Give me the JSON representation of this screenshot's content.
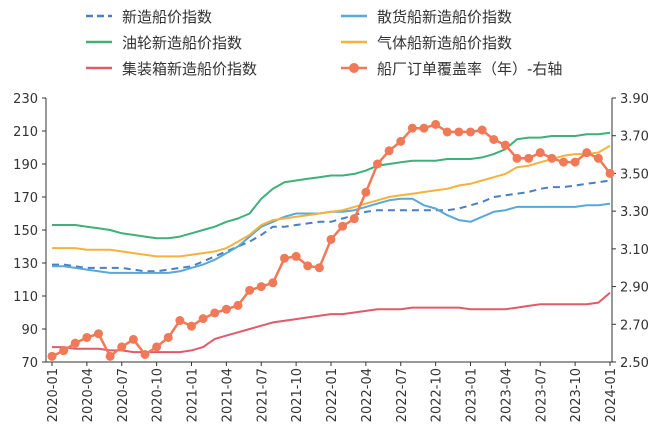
{
  "chart_data": {
    "type": "line",
    "x": [
      "2020-01",
      "2020-02",
      "2020-03",
      "2020-04",
      "2020-05",
      "2020-06",
      "2020-07",
      "2020-08",
      "2020-09",
      "2020-10",
      "2020-11",
      "2020-12",
      "2021-01",
      "2021-02",
      "2021-03",
      "2021-04",
      "2021-05",
      "2021-06",
      "2021-07",
      "2021-08",
      "2021-09",
      "2021-10",
      "2021-11",
      "2021-12",
      "2022-01",
      "2022-02",
      "2022-03",
      "2022-04",
      "2022-05",
      "2022-06",
      "2022-07",
      "2022-08",
      "2022-09",
      "2022-10",
      "2022-11",
      "2022-12",
      "2023-01",
      "2023-02",
      "2023-03",
      "2023-04",
      "2023-05",
      "2023-06",
      "2023-07",
      "2023-08",
      "2023-09",
      "2023-10",
      "2023-11",
      "2023-12",
      "2024-01"
    ],
    "xticks": [
      "2020-01",
      "2020-04",
      "2020-07",
      "2020-10",
      "2021-01",
      "2021-04",
      "2021-07",
      "2021-10",
      "2022-01",
      "2022-04",
      "2022-07",
      "2022-10",
      "2023-01",
      "2023-04",
      "2023-07",
      "2023-10",
      "2024-01"
    ],
    "ylim_left": [
      70,
      230
    ],
    "yticks_left": [
      "70",
      "90",
      "110",
      "130",
      "150",
      "170",
      "190",
      "210",
      "230"
    ],
    "ylim_right": [
      2.5,
      3.9
    ],
    "yticks_right": [
      "2.50",
      "2.70",
      "2.90",
      "3.10",
      "3.30",
      "3.50",
      "3.70",
      "3.90"
    ],
    "legend_position": "top",
    "series": [
      {
        "name": "新造船价指数",
        "color": "#4a7fc1",
        "dash": true,
        "axis": "left",
        "values": [
          129,
          129,
          128,
          127,
          127,
          127,
          127,
          126,
          125,
          125,
          126,
          127,
          128,
          131,
          134,
          137,
          140,
          143,
          147,
          152,
          152,
          153,
          154,
          155,
          155,
          157,
          159,
          161,
          162,
          162,
          162,
          162,
          162,
          162,
          162,
          163,
          165,
          167,
          170,
          171,
          172,
          173,
          175,
          176,
          176,
          177,
          178,
          179,
          180
        ]
      },
      {
        "name": "散货船新造船价指数",
        "color": "#58a8d8",
        "dash": false,
        "axis": "left",
        "values": [
          128,
          128,
          127,
          126,
          125,
          124,
          124,
          124,
          124,
          124,
          124,
          125,
          127,
          129,
          132,
          136,
          140,
          146,
          152,
          155,
          158,
          160,
          160,
          160,
          161,
          161,
          162,
          164,
          166,
          168,
          169,
          169,
          165,
          163,
          159,
          156,
          155,
          158,
          161,
          162,
          164,
          164,
          164,
          164,
          164,
          164,
          165,
          165,
          166
        ]
      },
      {
        "name": "油轮新造船价指数",
        "color": "#3fb07a",
        "dash": false,
        "axis": "left",
        "values": [
          153,
          153,
          153,
          152,
          151,
          150,
          148,
          147,
          146,
          145,
          145,
          146,
          148,
          150,
          152,
          155,
          157,
          160,
          169,
          175,
          179,
          180,
          181,
          182,
          183,
          183,
          184,
          186,
          189,
          190,
          191,
          192,
          192,
          192,
          193,
          193,
          193,
          194,
          196,
          199,
          205,
          206,
          206,
          207,
          207,
          207,
          208,
          208,
          209
        ]
      },
      {
        "name": "气体船新造船价指数",
        "color": "#f5b23c",
        "dash": false,
        "axis": "left",
        "values": [
          139,
          139,
          139,
          138,
          138,
          138,
          137,
          136,
          135,
          134,
          134,
          134,
          135,
          136,
          137,
          139,
          143,
          147,
          153,
          156,
          157,
          158,
          159,
          160,
          161,
          162,
          164,
          166,
          168,
          170,
          171,
          172,
          173,
          174,
          175,
          177,
          178,
          180,
          182,
          184,
          188,
          189,
          191,
          193,
          195,
          196,
          196,
          197,
          201
        ]
      },
      {
        "name": "集装箱新造船价指数",
        "color": "#e05a6a",
        "dash": false,
        "axis": "left",
        "values": [
          79,
          79,
          78,
          78,
          78,
          77,
          77,
          76,
          76,
          76,
          76,
          76,
          77,
          79,
          84,
          86,
          88,
          90,
          92,
          94,
          95,
          96,
          97,
          98,
          99,
          99,
          100,
          101,
          102,
          102,
          102,
          103,
          103,
          103,
          103,
          103,
          102,
          102,
          102,
          102,
          103,
          104,
          105,
          105,
          105,
          105,
          105,
          106,
          112
        ]
      },
      {
        "name": "船厂订单覆盖率（年）-右轴",
        "color": "#f07a58",
        "dash": false,
        "axis": "right",
        "markers": true,
        "values": [
          2.53,
          2.56,
          2.6,
          2.63,
          2.65,
          2.53,
          2.58,
          2.62,
          2.54,
          2.58,
          2.63,
          2.72,
          2.69,
          2.73,
          2.76,
          2.78,
          2.8,
          2.88,
          2.9,
          2.92,
          3.05,
          3.06,
          3.01,
          3.0,
          3.15,
          3.22,
          3.26,
          3.4,
          3.55,
          3.62,
          3.67,
          3.74,
          3.74,
          3.76,
          3.72,
          3.72,
          3.72,
          3.73,
          3.68,
          3.65,
          3.58,
          3.58,
          3.61,
          3.58,
          3.56,
          3.56,
          3.61,
          3.58,
          3.5
        ]
      }
    ]
  }
}
